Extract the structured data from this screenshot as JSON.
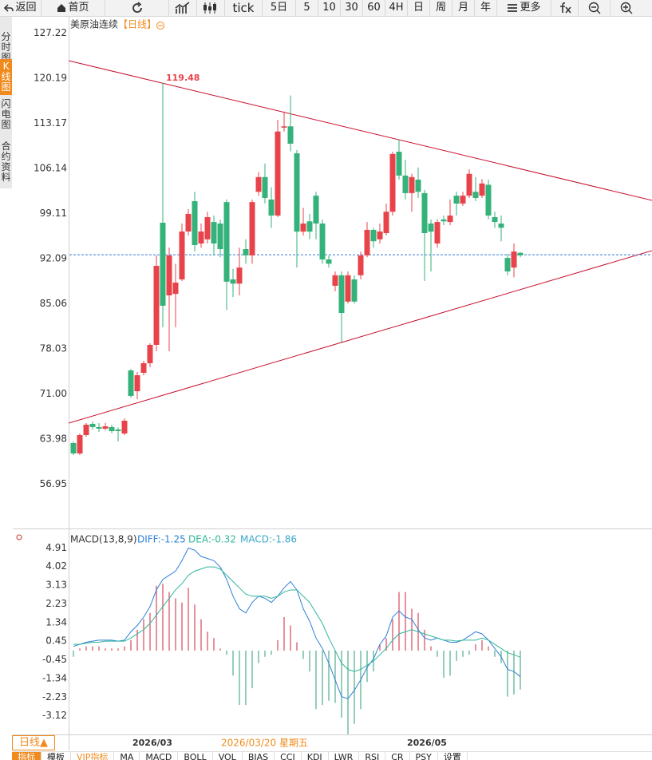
{
  "toolbar": [
    "返回",
    "首页",
    "tick",
    "5日",
    "5",
    "10",
    "30",
    "60",
    "4H",
    "日",
    "周",
    "月",
    "年",
    "更多"
  ],
  "sidebar": [
    "分时图",
    "K线图",
    "闪电图",
    "合约资料"
  ],
  "chart_data": [
    {
      "type": "candlestick",
      "title": "美原油连续",
      "subtitle": "【日线】",
      "categories": [
        null,
        null,
        null,
        null,
        null,
        null,
        null,
        null,
        null,
        null,
        null,
        null,
        "2026/03",
        null,
        null,
        null,
        null,
        null,
        null,
        null,
        null,
        null,
        null,
        null,
        null,
        null,
        null,
        null,
        null,
        null,
        null,
        null,
        null,
        null,
        null,
        null,
        null,
        null,
        null,
        null,
        null,
        null,
        null,
        null,
        null,
        null,
        null,
        null,
        null,
        null,
        null,
        null,
        null,
        null,
        null,
        "2026/05",
        null,
        null,
        null,
        null,
        null,
        null,
        null,
        null,
        null,
        null,
        null,
        null,
        null,
        null,
        null
      ],
      "open": [
        63.36,
        61.74,
        64.6,
        66.35,
        65.85,
        65.6,
        65.85,
        65.47,
        64.85,
        74.68,
        71.44,
        74.3,
        75.8,
        78.66,
        97.69,
        86.37,
        86.6,
        88.86,
        96.32,
        101.05,
        94.45,
        95.1,
        97.8,
        97.56,
        100.9,
        88.86,
        88.2,
        93.58,
        92.6,
        102.5,
        104.8,
        101.3,
        98.8,
        112.5,
        112.7,
        108.5,
        96.3,
        97.9,
        101.9,
        97.56,
        91.97,
        87.86,
        89.5,
        85.4,
        88.86,
        89.5,
        92.6,
        96.57,
        95.1,
        96.07,
        99.4,
        108.75,
        105.03,
        102.3,
        104.4,
        102.3,
        97.56,
        94.45,
        98.2,
        97.8,
        101.9,
        100.67,
        101.9,
        102.5,
        101.9,
        103.6,
        98.56,
        97.56,
        92.2,
        90.7,
        93.0
      ],
      "high": [
        63.6,
        64.85,
        66.47,
        66.72,
        66.47,
        66.5,
        66.2,
        65.8,
        67.2,
        74.9,
        74.43,
        76.17,
        78.9,
        92.6,
        119.48,
        93.8,
        91.3,
        97.56,
        99.8,
        102.5,
        97.56,
        99.4,
        98.8,
        98.2,
        101.3,
        90.5,
        93.8,
        95.1,
        101.3,
        105.6,
        106.9,
        103.2,
        113.7,
        115,
        117.5,
        109,
        100,
        99.06,
        102.5,
        98.2,
        92.6,
        90.1,
        90.1,
        90.1,
        89.5,
        93.2,
        97.8,
        96.9,
        97.56,
        100.67,
        108.75,
        110.6,
        107.5,
        105.3,
        106.3,
        102.8,
        98.2,
        98.2,
        98.8,
        101.3,
        102.5,
        102.5,
        106.0,
        104.8,
        104.5,
        104.4,
        99.4,
        98.8,
        92.8,
        94.45,
        93.1
      ],
      "low": [
        61.5,
        61.5,
        64.35,
        65.47,
        65.1,
        65.3,
        64.9,
        63.6,
        64.6,
        70.45,
        70.2,
        73.93,
        75.17,
        77.66,
        81.4,
        77.66,
        81.4,
        88.6,
        95.7,
        93.2,
        93.8,
        94.45,
        92.6,
        92.3,
        84.1,
        86.1,
        86.37,
        91.3,
        91.3,
        101.9,
        100.7,
        96.9,
        98.56,
        111.9,
        108.8,
        90.7,
        95.7,
        95.1,
        95.1,
        91.3,
        90.7,
        87,
        78.9,
        85.1,
        85.1,
        88.86,
        92.3,
        93.8,
        94.45,
        95.7,
        98.8,
        104.4,
        101.3,
        99.4,
        101.54,
        88.6,
        90.1,
        93.8,
        97.3,
        97.3,
        98.8,
        100.3,
        101.54,
        101.05,
        101.54,
        98.2,
        96.9,
        94.8,
        89.5,
        89.2,
        92.3
      ],
      "close": [
        61.74,
        64.6,
        66.22,
        65.85,
        65.6,
        65.97,
        65.22,
        65.22,
        66.84,
        70.7,
        73.93,
        75.8,
        78.66,
        90.97,
        84.75,
        92.59,
        88.36,
        96.32,
        99.06,
        94.2,
        96.32,
        98.56,
        94.45,
        93.58,
        88.5,
        88.2,
        90.7,
        92.6,
        100.9,
        104.8,
        101.54,
        98.8,
        111.9,
        112.7,
        110,
        96.3,
        97.56,
        96.3,
        97.56,
        91.97,
        91.3,
        89.5,
        83.63,
        89.5,
        85.4,
        92.6,
        96.57,
        94.8,
        96.32,
        99.4,
        108.4,
        105.03,
        102.3,
        104.8,
        102.5,
        96.07,
        96.3,
        97.8,
        97.9,
        98.8,
        100.67,
        101.9,
        105.3,
        101.54,
        103.8,
        98.8,
        97.8,
        96.9,
        90.1,
        93.2,
        92.6
      ],
      "up_color": "#e8434a",
      "down_color": "#34b27a",
      "price_line": 92.7,
      "ylim": [
        50.3,
        129.4
      ],
      "yticks": [
        127.22,
        120.19,
        113.17,
        106.14,
        99.11,
        92.09,
        85.06,
        78.03,
        {
          "value": 71,
          "label": "71.00"
        },
        63.98,
        56.95
      ]
    },
    {
      "type": "macd",
      "title": "MACD(13,8,9)",
      "series": [
        {
          "legend": "DIFF:-1.25",
          "color": "#2f7fd8",
          "values": [
            0.2,
            0.3,
            0.4,
            0.45,
            0.5,
            0.5,
            0.5,
            0.45,
            0.5,
            0.9,
            1.2,
            1.6,
            2.1,
            2.9,
            3.4,
            3.6,
            3.8,
            4.3,
            4.9,
            4.8,
            4.5,
            4.4,
            4.3,
            4.0,
            3.4,
            2.6,
            2.0,
            1.8,
            2.3,
            2.6,
            2.5,
            2.3,
            2.6,
            3.0,
            3.3,
            2.9,
            2.0,
            1.4,
            0.6,
            0.1,
            -0.6,
            -1.4,
            -2.2,
            -2.3,
            -1.9,
            -1.4,
            -0.8,
            -0.4,
            0.3,
            0.7,
            1.6,
            1.9,
            1.6,
            1.5,
            1.0,
            0.6,
            0.5,
            0.6,
            0.5,
            0.4,
            0.4,
            0.5,
            0.7,
            0.9,
            0.8,
            0.5,
            0.1,
            -0.3,
            -0.9,
            -1.0,
            -1.25
          ]
        },
        {
          "legend": "DEA:-0.32",
          "color": "#2fb59a",
          "values": [
            0.3,
            0.3,
            0.35,
            0.4,
            0.4,
            0.45,
            0.45,
            0.45,
            0.45,
            0.6,
            0.8,
            1.0,
            1.3,
            1.7,
            2.1,
            2.5,
            2.9,
            3.2,
            3.6,
            3.8,
            3.9,
            4.0,
            4.0,
            3.9,
            3.6,
            3.3,
            3.0,
            2.7,
            2.6,
            2.6,
            2.6,
            2.5,
            2.6,
            2.8,
            2.9,
            2.9,
            2.6,
            2.3,
            1.8,
            1.3,
            0.6,
            0.0,
            -0.6,
            -0.9,
            -1.0,
            -0.9,
            -0.7,
            -0.5,
            -0.2,
            0.1,
            0.5,
            0.8,
            0.9,
            1.0,
            0.9,
            0.8,
            0.7,
            0.6,
            0.5,
            0.5,
            0.45,
            0.5,
            0.5,
            0.5,
            0.6,
            0.5,
            0.3,
            0.1,
            -0.1,
            -0.2,
            -0.32
          ]
        }
      ],
      "histogram": {
        "legend": "MACD:-1.86",
        "legend_color": "#3aa8c8",
        "up_color": "#d9485a",
        "down_color": "#4fae8c",
        "values": [
          -0.3,
          0.1,
          0.2,
          0.2,
          0.2,
          0.1,
          0.1,
          0.1,
          0.2,
          0.5,
          1.0,
          1.5,
          1.8,
          3.1,
          3.2,
          2.8,
          2.5,
          2.3,
          3.0,
          2.2,
          1.5,
          0.9,
          0.6,
          0.1,
          -0.2,
          -1.2,
          -2.6,
          -2.6,
          -1.8,
          -0.6,
          -0.3,
          -0.2,
          0.5,
          1.6,
          1.2,
          0.4,
          -0.4,
          -1.0,
          -2.8,
          -2.6,
          -2.4,
          -2.5,
          -3.2,
          -4.0,
          -3.5,
          -2.8,
          -1.5,
          -1.0,
          0.3,
          0.6,
          1.5,
          2.8,
          2.8,
          2.0,
          1.8,
          1.0,
          0.2,
          -0.3,
          -1.3,
          -1.2,
          -0.5,
          -0.3,
          -0.2,
          0.3,
          0.5,
          0.2,
          -0.3,
          -0.6,
          -2.2,
          -2.1,
          -1.86
        ]
      },
      "ylim": [
        -4.2,
        5.34
      ],
      "yticks": [
        4.91,
        4.02,
        3.13,
        2.23,
        1.34,
        0.45,
        -0.45,
        -1.34,
        -2.23,
        -3.12
      ]
    }
  ],
  "footer": {
    "period": "日线▲",
    "crosshair_date": "2026/03/20 星期五",
    "tabs": [
      "指标",
      "模板",
      "VIP指标",
      "MA",
      "MACD",
      "BOLL",
      "VOL",
      "BIAS",
      "CCI",
      "KDJ",
      "LWR",
      "RSI",
      "CR",
      "PSY",
      "设置"
    ]
  }
}
